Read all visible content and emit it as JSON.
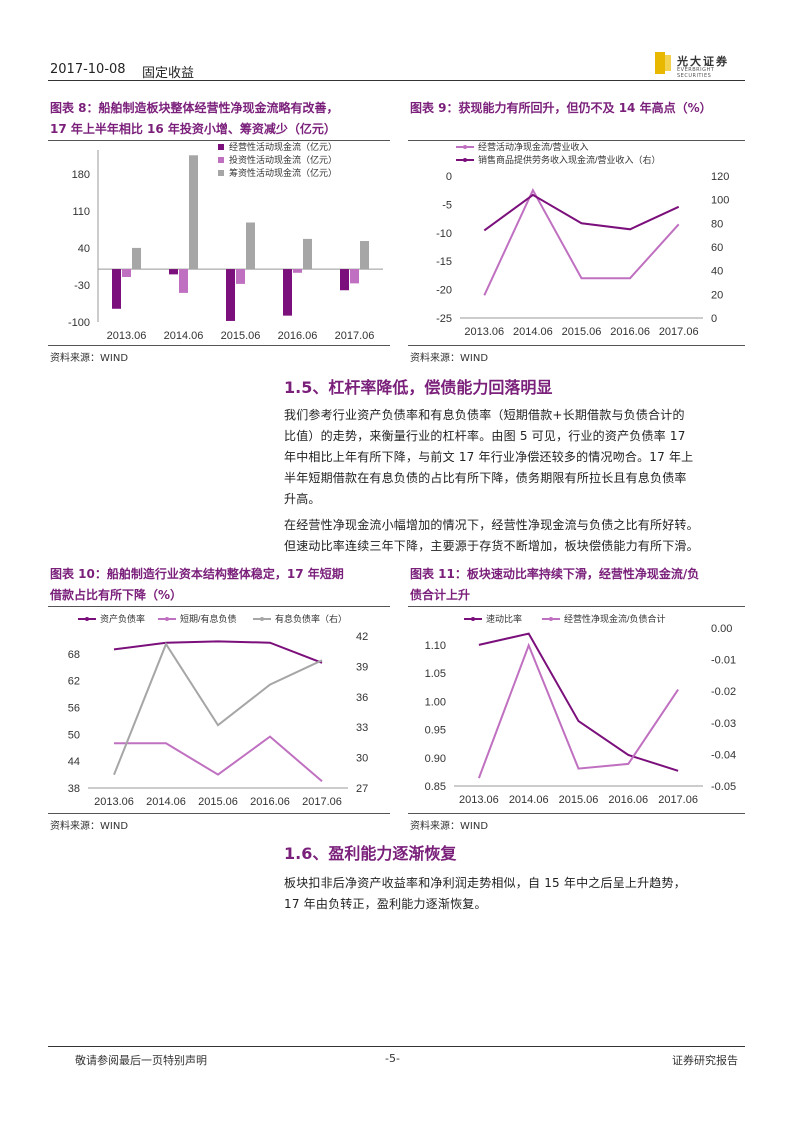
{
  "header": {
    "date": "2017-10-08",
    "category": "固定收益",
    "logo_cn": "光大证券",
    "logo_en": "EVERBRIGHT SECURITIES"
  },
  "fig8": {
    "title_line1": "图表 8：船舶制造板块整体经营性净现金流略有改善，",
    "title_line2": "17 年上半年相比 16 年投资小增、筹资减少（亿元）",
    "source": "资料来源：WIND"
  },
  "fig9": {
    "title": "图表 9：获现能力有所回升，但仍不及 14 年高点（%）",
    "source": "资料来源：WIND"
  },
  "fig10": {
    "title_line1": "图表 10：船舶制造行业资本结构整体稳定，17 年短期",
    "title_line2": "借款占比有所下降（%）",
    "source": "资料来源：WIND"
  },
  "fig11": {
    "title_line1": "图表 11：板块速动比率持续下滑，经营性净现金流/负",
    "title_line2": "债合计上升",
    "source": "资料来源：WIND"
  },
  "section15": {
    "heading": "1.5、杠杆率降低，偿债能力回落明显",
    "para1": [
      "我们参考行业资产负债率和有息负债率（短期借款+长期借款与负债合计的",
      "比值）的走势，来衡量行业的杠杆率。由图 5 可见，行业的资产负债率 17",
      "年中相比上年有所下降，与前文 17 年行业净偿还较多的情况吻合。17 年上",
      "半年短期借款在有息负债的占比有所下降，债务期限有所拉长且有息负债率",
      "升高。"
    ],
    "para2": [
      "在经营性净现金流小幅增加的情况下，经营性净现金流与负债之比有所好转。",
      "但速动比率连续三年下降，主要源于存货不断增加，板块偿债能力有所下滑。"
    ]
  },
  "section16": {
    "heading": "1.6、盈利能力逐渐恢复",
    "para": [
      "板块扣非后净资产收益率和净利润走势相似，自 15 年中之后呈上升趋势，",
      "17 年由负转正，盈利能力逐渐恢复。"
    ]
  },
  "footer": {
    "left": "敬请参阅最后一页特别声明",
    "page": "-5-",
    "right": "证券研究报告"
  },
  "colors": {
    "dark_purple": "#7b0f7b",
    "light_purple": "#c070c0",
    "gray": "#a6a6a6",
    "heading": "#7a1f7a"
  },
  "chart_data": [
    {
      "id": "fig8",
      "type": "bar",
      "categories": [
        "2013.06",
        "2014.06",
        "2015.06",
        "2016.06",
        "2017.06"
      ],
      "series": [
        {
          "name": "经营性活动现金流（亿元）",
          "values": [
            -75,
            -10,
            -98,
            -88,
            -40
          ],
          "color": "#7b0f7b"
        },
        {
          "name": "投资性活动现金流（亿元）",
          "values": [
            -15,
            -45,
            -28,
            -7,
            -27
          ],
          "color": "#c070c0"
        },
        {
          "name": "筹资性活动现金流（亿元）",
          "values": [
            40,
            215,
            88,
            57,
            53
          ],
          "color": "#a6a6a6"
        }
      ],
      "yticks": [
        180,
        110,
        40,
        -30,
        -100
      ],
      "ylim": [
        -100,
        225
      ],
      "legend": "top-right"
    },
    {
      "id": "fig9",
      "type": "line",
      "categories": [
        "2013.06",
        "2014.06",
        "2015.06",
        "2016.06",
        "2017.06"
      ],
      "series": [
        {
          "name": "经营活动净现金流/营业收入",
          "values": [
            -21,
            -2.5,
            -18,
            -18,
            -8.5
          ],
          "axis": "left",
          "color": "#c070c0"
        },
        {
          "name": "销售商品提供劳务收入现金流/营业收入（右）",
          "values": [
            74,
            104,
            80,
            75,
            94
          ],
          "axis": "right",
          "color": "#7b0f7b"
        }
      ],
      "yticks_left": [
        0,
        -5,
        -10,
        -15,
        -20,
        -25
      ],
      "ylim_left": [
        -25,
        0
      ],
      "yticks_right": [
        120,
        100,
        80,
        60,
        40,
        20,
        0
      ],
      "ylim_right": [
        0,
        120
      ],
      "legend": "top-left"
    },
    {
      "id": "fig10",
      "type": "line",
      "categories": [
        "2013.06",
        "2014.06",
        "2015.06",
        "2016.06",
        "2017.06"
      ],
      "series": [
        {
          "name": "资产负债率",
          "values": [
            69,
            70.5,
            70.8,
            70.5,
            66
          ],
          "axis": "left",
          "color": "#7b0f7b"
        },
        {
          "name": "短期/有息负债",
          "values": [
            48,
            48,
            41,
            49.5,
            39.5
          ],
          "axis": "left",
          "color": "#c070c0"
        },
        {
          "name": "有息负债率（右）",
          "values": [
            28.3,
            41.2,
            33.2,
            37.2,
            39.6
          ],
          "axis": "right",
          "color": "#a6a6a6"
        }
      ],
      "yticks_left": [
        68,
        62,
        56,
        50,
        44,
        38
      ],
      "ylim_left": [
        38,
        72
      ],
      "yticks_right": [
        42,
        39,
        36,
        33,
        30,
        27
      ],
      "ylim_right": [
        27,
        42
      ],
      "legend": "top"
    },
    {
      "id": "fig11",
      "type": "line",
      "categories": [
        "2013.06",
        "2014.06",
        "2015.06",
        "2016.06",
        "2017.06"
      ],
      "series": [
        {
          "name": "速动比率",
          "values": [
            1.1,
            1.12,
            0.965,
            0.905,
            0.877
          ],
          "axis": "left",
          "color": "#7b0f7b"
        },
        {
          "name": "经营性净现金流/负债合计",
          "values": [
            -0.0475,
            -0.0055,
            -0.0445,
            -0.043,
            -0.0195
          ],
          "axis": "right",
          "color": "#c070c0"
        }
      ],
      "yticks_left": [
        "1.10",
        "1.05",
        "1.00",
        "0.95",
        "0.90",
        "0.85"
      ],
      "ylim_left": [
        0.85,
        1.13
      ],
      "yticks_right": [
        "0.00",
        "-0.01",
        "-0.02",
        "-0.03",
        "-0.04",
        "-0.05"
      ],
      "ylim_right": [
        -0.05,
        0
      ],
      "legend": "top"
    }
  ]
}
